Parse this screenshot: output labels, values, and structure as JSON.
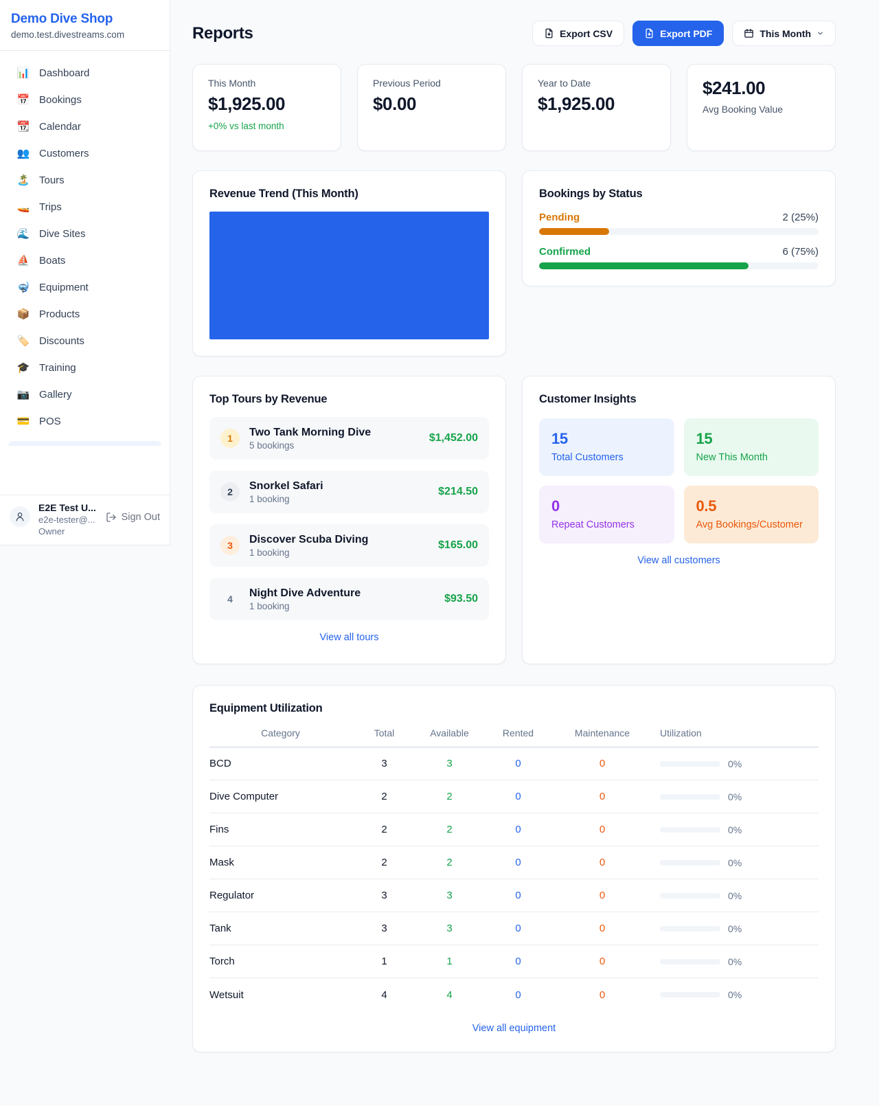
{
  "sidebar": {
    "shop_name": "Demo Dive Shop",
    "shop_domain": "demo.test.divestreams.com",
    "items": [
      {
        "name": "sidebar-item-dashboard",
        "icon": "📊",
        "label": "Dashboard"
      },
      {
        "name": "sidebar-item-bookings",
        "icon": "📅",
        "label": "Bookings"
      },
      {
        "name": "sidebar-item-calendar",
        "icon": "📆",
        "label": "Calendar"
      },
      {
        "name": "sidebar-item-customers",
        "icon": "👥",
        "label": "Customers"
      },
      {
        "name": "sidebar-item-tours",
        "icon": "🏝️",
        "label": "Tours"
      },
      {
        "name": "sidebar-item-trips",
        "icon": "🚤",
        "label": "Trips"
      },
      {
        "name": "sidebar-item-dive-sites",
        "icon": "🌊",
        "label": "Dive Sites"
      },
      {
        "name": "sidebar-item-boats",
        "icon": "⛵",
        "label": "Boats"
      },
      {
        "name": "sidebar-item-equipment",
        "icon": "🤿",
        "label": "Equipment"
      },
      {
        "name": "sidebar-item-products",
        "icon": "📦",
        "label": "Products"
      },
      {
        "name": "sidebar-item-discounts",
        "icon": "🏷️",
        "label": "Discounts"
      },
      {
        "name": "sidebar-item-training",
        "icon": "🎓",
        "label": "Training"
      },
      {
        "name": "sidebar-item-gallery",
        "icon": "📷",
        "label": "Gallery"
      },
      {
        "name": "sidebar-item-pos",
        "icon": "💳",
        "label": "POS"
      }
    ],
    "user": {
      "name": "E2E Test U...",
      "email": "e2e-tester@...",
      "role": "Owner",
      "sign_out_label": "Sign Out"
    }
  },
  "header": {
    "title": "Reports",
    "export_csv_label": "Export CSV",
    "export_pdf_label": "Export PDF",
    "period_label": "This Month"
  },
  "stats": {
    "this_month": {
      "label": "This Month",
      "value": "$1,925.00",
      "delta": "+0% vs last month"
    },
    "previous_period": {
      "label": "Previous Period",
      "value": "$0.00"
    },
    "year_to_date": {
      "label": "Year to Date",
      "value": "$1,925.00"
    },
    "avg_booking": {
      "label": "Avg Booking Value",
      "value": "$241.00"
    }
  },
  "revenue_trend": {
    "title": "Revenue Trend (This Month)",
    "bar_color": "#2563eb"
  },
  "bookings_by_status": {
    "title": "Bookings by Status",
    "rows": [
      {
        "label": "Pending",
        "count": "2 (25%)",
        "pct": 25,
        "fg": "#d97706",
        "bar": "#d97706"
      },
      {
        "label": "Confirmed",
        "count": "6 (75%)",
        "pct": 75,
        "fg": "#16a34a",
        "bar": "#16a34a"
      }
    ]
  },
  "top_tours": {
    "title": "Top Tours by Revenue",
    "view_all": "View all tours",
    "rows": [
      {
        "rank": "1",
        "name": "Two Tank Morning Dive",
        "bookings": "5 bookings",
        "amount": "$1,452.00",
        "rank_fg": "#d97706",
        "rank_bg": "#fdf2cd"
      },
      {
        "rank": "2",
        "name": "Snorkel Safari",
        "bookings": "1 booking",
        "amount": "$214.50",
        "rank_fg": "#334155",
        "rank_bg": "#eceef1"
      },
      {
        "rank": "3",
        "name": "Discover Scuba Diving",
        "bookings": "1 booking",
        "amount": "$165.00",
        "rank_fg": "#ea580c",
        "rank_bg": "#fdeedd"
      },
      {
        "rank": "4",
        "name": "Night Dive Adventure",
        "bookings": "1 booking",
        "amount": "$93.50",
        "rank_fg": "#64748b",
        "rank_bg": "transparent"
      }
    ]
  },
  "customer_insights": {
    "title": "Customer Insights",
    "view_all": "View all customers",
    "tiles": [
      {
        "value": "15",
        "label": "Total Customers",
        "fg": "#2563eb",
        "bg": "#edf3fe"
      },
      {
        "value": "15",
        "label": "New This Month",
        "fg": "#16a34a",
        "bg": "#e9f9ef"
      },
      {
        "value": "0",
        "label": "Repeat Customers",
        "fg": "#9333ea",
        "bg": "#f6effc"
      },
      {
        "value": "0.5",
        "label": "Avg Bookings/Customer",
        "fg": "#ea580c",
        "bg": "#fcead6"
      }
    ]
  },
  "equipment": {
    "title": "Equipment Utilization",
    "view_all": "View all equipment",
    "columns": [
      {
        "label": "Category"
      },
      {
        "label": "Total"
      },
      {
        "label": "Available"
      },
      {
        "label": "Rented"
      },
      {
        "label": "Maintenance"
      },
      {
        "label": "Utilization"
      }
    ],
    "rows": [
      {
        "category": "BCD",
        "total": "3",
        "available": "3",
        "rented": "0",
        "maintenance": "0",
        "utilization": "0%",
        "pct": 0
      },
      {
        "category": "Dive Computer",
        "total": "2",
        "available": "2",
        "rented": "0",
        "maintenance": "0",
        "utilization": "0%",
        "pct": 0
      },
      {
        "category": "Fins",
        "total": "2",
        "available": "2",
        "rented": "0",
        "maintenance": "0",
        "utilization": "0%",
        "pct": 0
      },
      {
        "category": "Mask",
        "total": "2",
        "available": "2",
        "rented": "0",
        "maintenance": "0",
        "utilization": "0%",
        "pct": 0
      },
      {
        "category": "Regulator",
        "total": "3",
        "available": "3",
        "rented": "0",
        "maintenance": "0",
        "utilization": "0%",
        "pct": 0
      },
      {
        "category": "Tank",
        "total": "3",
        "available": "3",
        "rented": "0",
        "maintenance": "0",
        "utilization": "0%",
        "pct": 0
      },
      {
        "category": "Torch",
        "total": "1",
        "available": "1",
        "rented": "0",
        "maintenance": "0",
        "utilization": "0%",
        "pct": 0
      },
      {
        "category": "Wetsuit",
        "total": "4",
        "available": "4",
        "rented": "0",
        "maintenance": "0",
        "utilization": "0%",
        "pct": 0
      }
    ]
  },
  "colors": {
    "accent": "#2563eb",
    "green": "#16a34a",
    "orange": "#ea580c",
    "amber": "#d97706"
  }
}
